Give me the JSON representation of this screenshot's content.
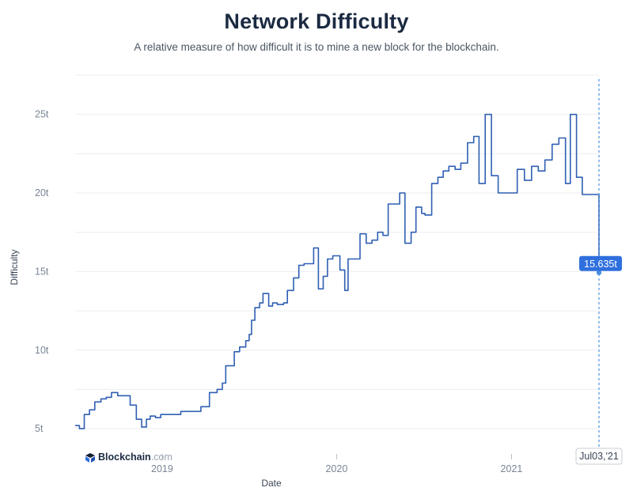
{
  "header": {
    "title": "Network Difficulty",
    "subtitle": "A relative measure of how difficult it is to mine a new block for the blockchain."
  },
  "brand": {
    "name": "Blockchain",
    "suffix": ".com",
    "icon": "blockchain-logo-icon"
  },
  "hover": {
    "value_label": "15.635t",
    "date_label": "Jul03,'21",
    "value": 15.635,
    "date": "2021-07-03"
  },
  "colors": {
    "line": "#2f5fb3",
    "crosshair": "#4a8fe0",
    "tooltip_bg": "#2f6fde",
    "grid": "#eceef2"
  },
  "chart_data": {
    "type": "line",
    "step": true,
    "title": "Network Difficulty",
    "subtitle": "A relative measure of how difficult it is to mine a new block for the blockchain.",
    "xlabel": "Date",
    "ylabel": "Difficulty",
    "x_ticks": [
      {
        "date": "2019-01-01",
        "label": "2019"
      },
      {
        "date": "2020-01-01",
        "label": "2020"
      },
      {
        "date": "2021-01-01",
        "label": "2021"
      }
    ],
    "y_ticks": [
      {
        "value": 5,
        "label": "5t"
      },
      {
        "value": 10,
        "label": "10t"
      },
      {
        "value": 15,
        "label": "15t"
      },
      {
        "value": 20,
        "label": "20t"
      },
      {
        "value": 25,
        "label": "25t"
      }
    ],
    "xlim": [
      "2018-07-03",
      "2021-07-03"
    ],
    "ylim": [
      4,
      27.5
    ],
    "grid": true,
    "legend": "none",
    "series": [
      {
        "values": [
          [
            "2018-07-03",
            5.2
          ],
          [
            "2018-07-12",
            5.0
          ],
          [
            "2018-07-22",
            5.9
          ],
          [
            "2018-08-02",
            6.2
          ],
          [
            "2018-08-13",
            6.7
          ],
          [
            "2018-08-26",
            6.9
          ],
          [
            "2018-09-06",
            7.0
          ],
          [
            "2018-09-17",
            7.3
          ],
          [
            "2018-09-30",
            7.1
          ],
          [
            "2018-10-26",
            6.5
          ],
          [
            "2018-11-08",
            5.6
          ],
          [
            "2018-11-19",
            5.1
          ],
          [
            "2018-11-29",
            5.6
          ],
          [
            "2018-12-07",
            5.8
          ],
          [
            "2018-12-18",
            5.7
          ],
          [
            "2018-12-29",
            5.9
          ],
          [
            "2019-02-09",
            6.1
          ],
          [
            "2019-03-06",
            6.1
          ],
          [
            "2019-03-23",
            6.4
          ],
          [
            "2019-04-10",
            7.3
          ],
          [
            "2019-04-26",
            7.5
          ],
          [
            "2019-05-07",
            7.9
          ],
          [
            "2019-05-14",
            9.0
          ],
          [
            "2019-06-01",
            9.9
          ],
          [
            "2019-06-12",
            10.2
          ],
          [
            "2019-06-25",
            10.6
          ],
          [
            "2019-07-02",
            11.0
          ],
          [
            "2019-07-07",
            11.9
          ],
          [
            "2019-07-14",
            12.7
          ],
          [
            "2019-07-24",
            13.0
          ],
          [
            "2019-07-31",
            13.6
          ],
          [
            "2019-08-12",
            12.8
          ],
          [
            "2019-08-20",
            13.0
          ],
          [
            "2019-08-30",
            12.9
          ],
          [
            "2019-09-12",
            13.0
          ],
          [
            "2019-09-20",
            13.8
          ],
          [
            "2019-10-03",
            14.6
          ],
          [
            "2019-10-14",
            15.4
          ],
          [
            "2019-10-25",
            15.5
          ],
          [
            "2019-11-14",
            16.5
          ],
          [
            "2019-11-24",
            13.9
          ],
          [
            "2019-12-04",
            14.7
          ],
          [
            "2019-12-13",
            15.8
          ],
          [
            "2019-12-24",
            16.0
          ],
          [
            "2020-01-08",
            15.1
          ],
          [
            "2020-01-18",
            13.8
          ],
          [
            "2020-01-25",
            15.8
          ],
          [
            "2020-02-19",
            17.4
          ],
          [
            "2020-03-03",
            16.8
          ],
          [
            "2020-03-15",
            17.0
          ],
          [
            "2020-03-27",
            17.5
          ],
          [
            "2020-04-07",
            17.3
          ],
          [
            "2020-04-18",
            19.3
          ],
          [
            "2020-05-12",
            20.0
          ],
          [
            "2020-05-23",
            16.8
          ],
          [
            "2020-06-05",
            17.5
          ],
          [
            "2020-06-15",
            19.1
          ],
          [
            "2020-06-27",
            18.7
          ],
          [
            "2020-07-04",
            18.6
          ],
          [
            "2020-07-18",
            20.6
          ],
          [
            "2020-07-31",
            21.0
          ],
          [
            "2020-08-11",
            21.4
          ],
          [
            "2020-08-23",
            21.7
          ],
          [
            "2020-09-05",
            21.5
          ],
          [
            "2020-09-17",
            21.9
          ],
          [
            "2020-10-01",
            23.2
          ],
          [
            "2020-10-14",
            23.6
          ],
          [
            "2020-10-25",
            20.6
          ],
          [
            "2020-11-07",
            25.0
          ],
          [
            "2020-11-20",
            21.1
          ],
          [
            "2020-12-04",
            20.0
          ],
          [
            "2021-01-01",
            20.0
          ],
          [
            "2021-01-13",
            21.5
          ],
          [
            "2021-01-28",
            20.8
          ],
          [
            "2021-02-12",
            21.7
          ],
          [
            "2021-02-26",
            21.4
          ],
          [
            "2021-03-12",
            22.1
          ],
          [
            "2021-03-27",
            23.1
          ],
          [
            "2021-04-10",
            23.5
          ],
          [
            "2021-04-24",
            20.6
          ],
          [
            "2021-05-04",
            25.0
          ],
          [
            "2021-05-17",
            21.0
          ],
          [
            "2021-05-29",
            19.9
          ],
          [
            "2021-07-02",
            19.9
          ],
          [
            "2021-07-03",
            15.635
          ]
        ]
      }
    ]
  }
}
